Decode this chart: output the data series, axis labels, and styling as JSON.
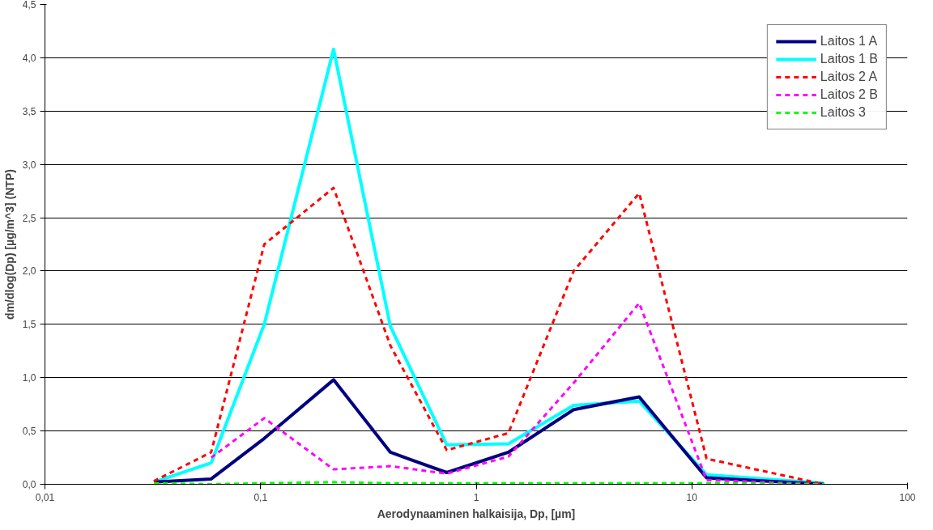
{
  "chart_data": {
    "type": "line",
    "xlabel": "Aerodynaaminen halkaisija, Dp, [µm]",
    "ylabel": "dm/dlog(Dp) [µg/m^3] (NTP)",
    "log": "x",
    "grid": "y",
    "legend": "top right",
    "marker": "none",
    "x": [
      0.032,
      0.059,
      0.104,
      0.218,
      0.4,
      0.73,
      1.41,
      2.83,
      5.7,
      11.7,
      41
    ],
    "xlim": [
      0.01,
      100
    ],
    "xticks": [
      {
        "value": 0.01,
        "label": "0,01"
      },
      {
        "value": 0.1,
        "label": "0,1"
      },
      1,
      10,
      100
    ],
    "ylim": [
      0,
      4.5
    ],
    "yticks": [
      {
        "value": 0,
        "label": "0,0"
      },
      {
        "value": 0.5,
        "label": "0,5"
      },
      {
        "value": 1,
        "label": "1,0"
      },
      {
        "value": 1.5,
        "label": "1,5"
      },
      {
        "value": 2,
        "label": "2,0"
      },
      {
        "value": 2.5,
        "label": "2,5"
      },
      {
        "value": 3,
        "label": "3,0"
      },
      {
        "value": 3.5,
        "label": "3,5"
      },
      {
        "value": 4,
        "label": "4,0"
      },
      {
        "value": 4.5,
        "label": "4,5"
      }
    ],
    "series": [
      {
        "name": "Laitos 1 A",
        "color": "#000080",
        "line_style": "solid",
        "values": [
          0.02,
          0.05,
          0.43,
          0.98,
          0.3,
          0.11,
          0.3,
          0.7,
          0.82,
          0.06,
          0.0
        ]
      },
      {
        "name": "Laitos 1 B",
        "color": "#00ffff",
        "line_style": "solid",
        "values": [
          0.02,
          0.2,
          1.5,
          4.08,
          1.48,
          0.37,
          0.38,
          0.74,
          0.78,
          0.09,
          0.01
        ]
      },
      {
        "name": "Laitos 2 A",
        "color": "#ff0000",
        "line_style": "dashed",
        "values": [
          0.03,
          0.3,
          2.25,
          2.78,
          1.3,
          0.32,
          0.48,
          2.0,
          2.73,
          0.24,
          0.0
        ]
      },
      {
        "name": "Laitos 2 B",
        "color": "#ff00ff",
        "line_style": "dashed",
        "values": [
          null,
          0.25,
          0.62,
          0.14,
          0.17,
          0.1,
          0.26,
          0.95,
          1.7,
          0.04,
          0.0
        ]
      },
      {
        "name": "Laitos 3",
        "color": "#00ff00",
        "line_style": "dashed",
        "values": [
          0.01,
          0.0,
          0.01,
          0.02,
          0.01,
          0.01,
          0.01,
          0.01,
          0.01,
          0.01,
          0.0
        ]
      }
    ]
  }
}
